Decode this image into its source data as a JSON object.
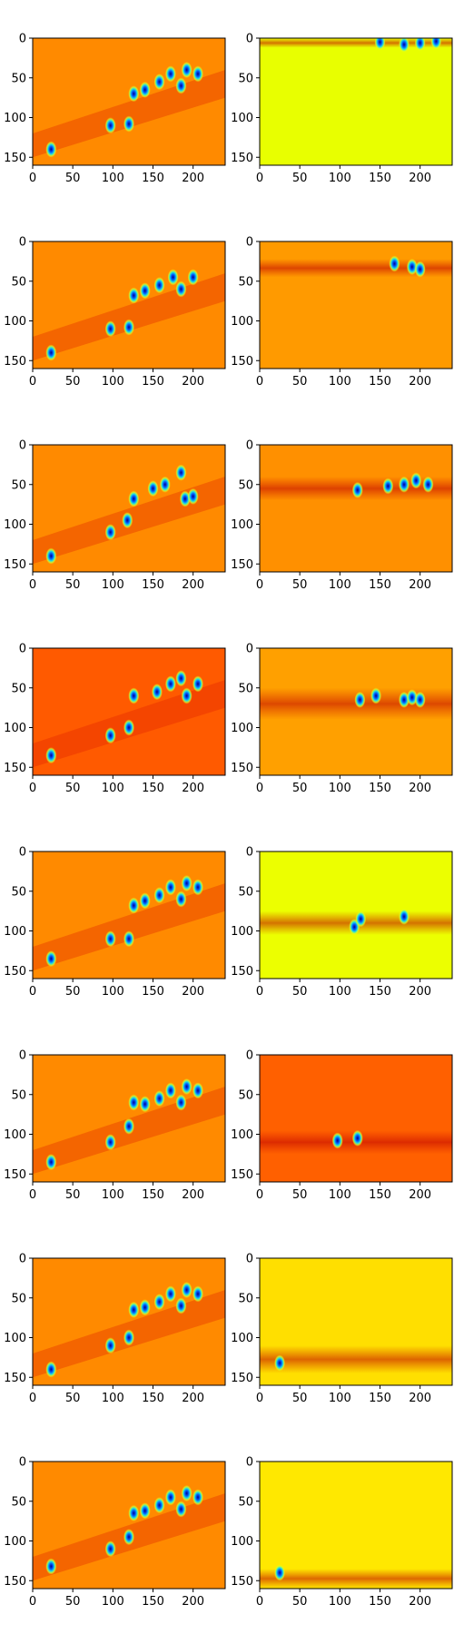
{
  "chart_data": {
    "type": "heatmap",
    "layout": "8 rows x 2 columns of image panels",
    "x_ticks": [
      0,
      50,
      100,
      150,
      200
    ],
    "y_ticks": [
      0,
      50,
      100,
      150
    ],
    "xlim": [
      0,
      240
    ],
    "ylim": [
      160,
      0
    ],
    "colormap": "jet",
    "panels": [
      {
        "row": 1,
        "col": 1,
        "background": "#ff8a00",
        "band_y": [
          50,
          140
        ],
        "blobs": [
          [
            23,
            140
          ],
          [
            97,
            110
          ],
          [
            120,
            108
          ],
          [
            126,
            70
          ],
          [
            140,
            65
          ],
          [
            158,
            55
          ],
          [
            172,
            45
          ],
          [
            185,
            60
          ],
          [
            192,
            40
          ],
          [
            206,
            45
          ]
        ]
      },
      {
        "row": 1,
        "col": 2,
        "background": "#e8ff00",
        "band_y": [
          0,
          12
        ],
        "blobs": [
          [
            150,
            5
          ],
          [
            180,
            8
          ],
          [
            200,
            6
          ],
          [
            220,
            4
          ]
        ]
      },
      {
        "row": 2,
        "col": 1,
        "background": "#ff8a00",
        "band_y": [
          50,
          140
        ],
        "blobs": [
          [
            23,
            140
          ],
          [
            97,
            110
          ],
          [
            120,
            108
          ],
          [
            126,
            68
          ],
          [
            140,
            62
          ],
          [
            158,
            55
          ],
          [
            175,
            45
          ],
          [
            185,
            60
          ],
          [
            200,
            45
          ]
        ]
      },
      {
        "row": 2,
        "col": 2,
        "background": "#ff9a00",
        "band_y": [
          22,
          45
        ],
        "blobs": [
          [
            168,
            28
          ],
          [
            190,
            32
          ],
          [
            200,
            35
          ]
        ]
      },
      {
        "row": 3,
        "col": 1,
        "background": "#ff8a00",
        "band_y": [
          50,
          140
        ],
        "blobs": [
          [
            23,
            140
          ],
          [
            97,
            110
          ],
          [
            118,
            95
          ],
          [
            126,
            68
          ],
          [
            150,
            55
          ],
          [
            165,
            50
          ],
          [
            185,
            35
          ],
          [
            190,
            68
          ],
          [
            200,
            65
          ]
        ]
      },
      {
        "row": 3,
        "col": 2,
        "background": "#ff9000",
        "band_y": [
          40,
          70
        ],
        "blobs": [
          [
            122,
            57
          ],
          [
            160,
            52
          ],
          [
            180,
            50
          ],
          [
            195,
            45
          ],
          [
            210,
            50
          ]
        ]
      },
      {
        "row": 4,
        "col": 1,
        "background": "#ff5a00",
        "band_y": [
          50,
          140
        ],
        "blobs": [
          [
            23,
            135
          ],
          [
            97,
            110
          ],
          [
            120,
            100
          ],
          [
            126,
            60
          ],
          [
            155,
            55
          ],
          [
            172,
            45
          ],
          [
            185,
            38
          ],
          [
            192,
            60
          ],
          [
            206,
            45
          ]
        ]
      },
      {
        "row": 4,
        "col": 2,
        "background": "#ffa000",
        "band_y": [
          50,
          90
        ],
        "blobs": [
          [
            125,
            65
          ],
          [
            145,
            60
          ],
          [
            180,
            65
          ],
          [
            190,
            62
          ],
          [
            200,
            65
          ]
        ]
      },
      {
        "row": 5,
        "col": 1,
        "background": "#ff8a00",
        "band_y": [
          50,
          140
        ],
        "blobs": [
          [
            23,
            135
          ],
          [
            97,
            110
          ],
          [
            120,
            110
          ],
          [
            126,
            68
          ],
          [
            140,
            62
          ],
          [
            158,
            55
          ],
          [
            172,
            45
          ],
          [
            185,
            60
          ],
          [
            192,
            40
          ],
          [
            206,
            45
          ]
        ]
      },
      {
        "row": 5,
        "col": 2,
        "background": "#ecff00",
        "band_y": [
          75,
          105
        ],
        "blobs": [
          [
            118,
            95
          ],
          [
            126,
            85
          ],
          [
            180,
            82
          ]
        ]
      },
      {
        "row": 6,
        "col": 1,
        "background": "#ff8a00",
        "band_y": [
          50,
          140
        ],
        "blobs": [
          [
            23,
            135
          ],
          [
            97,
            110
          ],
          [
            120,
            90
          ],
          [
            126,
            60
          ],
          [
            140,
            62
          ],
          [
            158,
            55
          ],
          [
            172,
            45
          ],
          [
            185,
            60
          ],
          [
            192,
            40
          ],
          [
            206,
            45
          ]
        ]
      },
      {
        "row": 6,
        "col": 2,
        "background": "#ff6000",
        "band_y": [
          95,
          125
        ],
        "blobs": [
          [
            97,
            108
          ],
          [
            122,
            105
          ]
        ]
      },
      {
        "row": 7,
        "col": 1,
        "background": "#ff8a00",
        "band_y": [
          50,
          140
        ],
        "blobs": [
          [
            23,
            140
          ],
          [
            97,
            110
          ],
          [
            120,
            100
          ],
          [
            126,
            65
          ],
          [
            140,
            62
          ],
          [
            158,
            55
          ],
          [
            172,
            45
          ],
          [
            185,
            60
          ],
          [
            192,
            40
          ],
          [
            206,
            45
          ]
        ]
      },
      {
        "row": 7,
        "col": 2,
        "background": "#ffdf00",
        "band_y": [
          110,
          145
        ],
        "blobs": [
          [
            25,
            132
          ]
        ]
      },
      {
        "row": 8,
        "col": 1,
        "background": "#ff8a00",
        "band_y": [
          50,
          140
        ],
        "blobs": [
          [
            23,
            132
          ],
          [
            97,
            110
          ],
          [
            120,
            95
          ],
          [
            126,
            65
          ],
          [
            140,
            62
          ],
          [
            158,
            55
          ],
          [
            172,
            45
          ],
          [
            185,
            60
          ],
          [
            192,
            40
          ],
          [
            206,
            45
          ]
        ]
      },
      {
        "row": 8,
        "col": 2,
        "background": "#ffe800",
        "band_y": [
          135,
          160
        ],
        "blobs": [
          [
            25,
            140
          ]
        ]
      }
    ]
  }
}
